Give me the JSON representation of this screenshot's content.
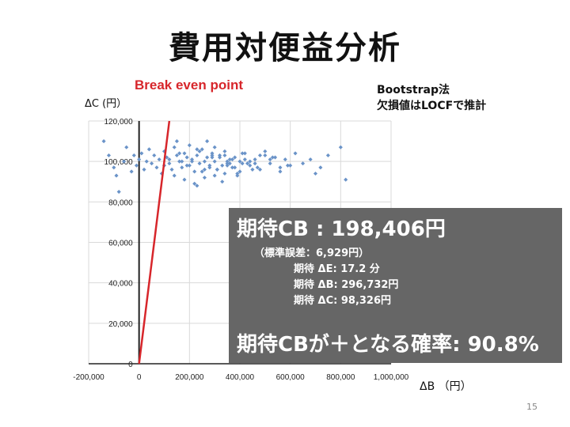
{
  "slide": {
    "title": "費用対便益分析",
    "page_number": "15",
    "method_line1": "Bootstrap法",
    "method_line2": "欠損値はLOCFで推計"
  },
  "overlay": {
    "expected_cb": "期待CB : 198,406円",
    "std_error": "（標準誤差：6,929円）",
    "expected_e": "期待  ΔE: 17.2 分",
    "expected_b": "期待  ΔB: 296,732円",
    "expected_c": "期待  ΔC: 98,326円",
    "probability": "期待CBが＋となる確率: 90.8%"
  },
  "chart_data": {
    "type": "scatter",
    "xlabel": "ΔB （円）",
    "ylabel": "ΔC (円）",
    "annotation": "Break even point",
    "xlim": [
      -200000,
      1000000
    ],
    "ylim": [
      0,
      120000
    ],
    "x_ticks": [
      "-200,000",
      "0",
      "200,000",
      "400,000",
      "600,000",
      "800,000",
      "1,000,000"
    ],
    "y_ticks": [
      "0",
      "20,000",
      "40,000",
      "60,000",
      "80,000",
      "100,000",
      "120,000"
    ],
    "x_tick_values": [
      -200000,
      0,
      200000,
      400000,
      600000,
      800000,
      1000000
    ],
    "y_tick_values": [
      0,
      20000,
      40000,
      60000,
      80000,
      100000,
      120000
    ],
    "grid": true,
    "point_color": "#6a93c8",
    "line_color": "#d7262b",
    "break_even_line": {
      "x": [
        0,
        120000
      ],
      "y": [
        0,
        120000
      ]
    },
    "points": {
      "x": [
        -140000,
        -120000,
        -100000,
        -90000,
        -80000,
        -60000,
        -50000,
        -30000,
        -20000,
        -10000,
        0,
        10000,
        20000,
        30000,
        40000,
        50000,
        60000,
        70000,
        80000,
        90000,
        100000,
        110000,
        120000,
        130000,
        140000,
        150000,
        160000,
        170000,
        180000,
        190000,
        200000,
        210000,
        220000,
        230000,
        240000,
        250000,
        260000,
        270000,
        280000,
        290000,
        300000,
        310000,
        320000,
        330000,
        340000,
        350000,
        360000,
        370000,
        380000,
        390000,
        400000,
        420000,
        440000,
        460000,
        480000,
        500000,
        520000,
        540000,
        560000,
        580000,
        600000,
        620000,
        650000,
        680000,
        700000,
        720000,
        750000,
        800000,
        820000,
        100000,
        140000,
        180000,
        220000,
        260000,
        300000,
        340000,
        380000,
        420000,
        460000,
        500000,
        150000,
        190000,
        230000,
        270000,
        310000,
        350000,
        390000,
        430000,
        120000,
        160000,
        200000,
        240000,
        280000,
        320000,
        360000,
        400000,
        440000,
        480000,
        520000,
        560000,
        210000,
        250000,
        290000,
        330000,
        370000,
        410000,
        450000,
        170000,
        230000,
        290000,
        350000,
        410000,
        470000,
        530000,
        590000,
        260000,
        300000,
        340000
      ],
      "y": [
        110000,
        103000,
        97000,
        93000,
        85000,
        100000,
        107000,
        95000,
        103000,
        98000,
        101000,
        104000,
        96000,
        100000,
        106000,
        99000,
        103000,
        97000,
        101000,
        94000,
        105000,
        102000,
        99000,
        96000,
        107000,
        103000,
        100000,
        97000,
        104000,
        98000,
        108000,
        101000,
        95000,
        103000,
        99000,
        106000,
        92000,
        102000,
        98000,
        104000,
        100000,
        96000,
        103000,
        90000,
        105000,
        99000,
        101000,
        97000,
        102000,
        94000,
        100000,
        104000,
        98000,
        101000,
        96000,
        103000,
        99000,
        102000,
        95000,
        101000,
        98000,
        104000,
        99000,
        101000,
        94000,
        97000,
        103000,
        107000,
        91000,
        98000,
        93000,
        91000,
        89000,
        96000,
        107000,
        94000,
        97000,
        101000,
        99000,
        105000,
        110000,
        102000,
        88000,
        110000,
        96000,
        100000,
        93000,
        99000,
        101000,
        104000,
        98000,
        105000,
        97000,
        102000,
        99000,
        95000,
        100000,
        103000,
        101000,
        97000,
        100000,
        95000,
        103000,
        98000,
        101000,
        99000,
        96000,
        100000,
        106000,
        102000,
        98000,
        104000,
        97000,
        102000,
        98000,
        100000,
        93000,
        103000
      ]
    }
  }
}
